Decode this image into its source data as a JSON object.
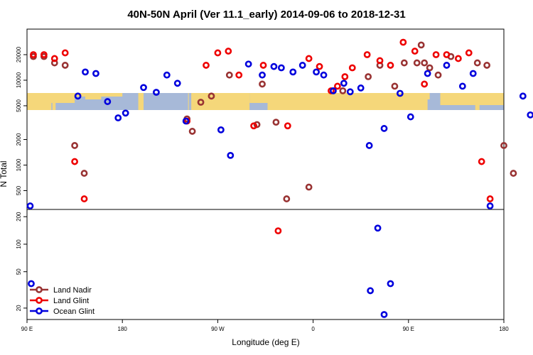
{
  "chart_data": {
    "type": "scatter",
    "title": "40N-50N April (Ver 11.1_early)   2014-09-06 to 2018-12-31",
    "xlabel": "Longitude (deg E)",
    "ylabel": "N Total",
    "x_ticks": [
      {
        "value": 90,
        "label": "90 E"
      },
      {
        "value": 180,
        "label": "180"
      },
      {
        "value": 270,
        "label": "90 W"
      },
      {
        "value": 360,
        "label": "0"
      },
      {
        "value": 450,
        "label": "90 E"
      },
      {
        "value": 540,
        "label": "180"
      }
    ],
    "xlim": [
      90,
      540
    ],
    "colors": {
      "land_nadir": "#993333",
      "land_glint": "#ee0000",
      "ocean_glint": "#0000dd",
      "land": "#f5d77a",
      "ocean": "#a7b9d8"
    },
    "panels": [
      {
        "name": "upper",
        "scale": "log",
        "ylim": [
          300,
          40000
        ],
        "y_ticks": [
          500,
          1000,
          2000,
          5000,
          10000,
          20000
        ],
        "series": [
          {
            "name": "Land Nadir",
            "color": "#993333",
            "points": [
              [
                96,
                19000
              ],
              [
                106,
                19000
              ],
              [
                116,
                16000
              ],
              [
                126,
                15000
              ],
              [
                135,
                1700
              ],
              [
                144,
                800
              ],
              [
                241,
                3500
              ],
              [
                246,
                2500
              ],
              [
                254,
                5500
              ],
              [
                264,
                6500
              ],
              [
                281,
                11500
              ],
              [
                307,
                3000
              ],
              [
                312,
                9000
              ],
              [
                325,
                3200
              ],
              [
                335,
                400
              ],
              [
                356,
                550
              ],
              [
                388,
                7500
              ],
              [
                412,
                11000
              ],
              [
                423,
                15000
              ],
              [
                437,
                8500
              ],
              [
                446,
                16000
              ],
              [
                458,
                16000
              ],
              [
                462,
                26000
              ],
              [
                465,
                16000
              ],
              [
                470,
                14000
              ],
              [
                478,
                11500
              ],
              [
                490,
                19000
              ],
              [
                515,
                16000
              ],
              [
                524,
                15000
              ],
              [
                540,
                1700
              ],
              [
                549,
                800
              ]
            ]
          },
          {
            "name": "Land Glint",
            "color": "#ee0000",
            "points": [
              [
                96,
                20000
              ],
              [
                106,
                20000
              ],
              [
                116,
                18000
              ],
              [
                126,
                21000
              ],
              [
                135,
                1100
              ],
              [
                144,
                400
              ],
              [
                241,
                3300
              ],
              [
                259,
                15000
              ],
              [
                270,
                21000
              ],
              [
                280,
                22000
              ],
              [
                290,
                11500
              ],
              [
                304,
                2900
              ],
              [
                313,
                15000
              ],
              [
                336,
                2900
              ],
              [
                356,
                18000
              ],
              [
                366,
                14500
              ],
              [
                377,
                7500
              ],
              [
                383,
                8500
              ],
              [
                390,
                11000
              ],
              [
                397,
                14000
              ],
              [
                411,
                20000
              ],
              [
                423,
                17000
              ],
              [
                433,
                15000
              ],
              [
                445,
                28000
              ],
              [
                456,
                22000
              ],
              [
                465,
                9000
              ],
              [
                476,
                20000
              ],
              [
                486,
                20000
              ],
              [
                497,
                18000
              ],
              [
                507,
                21000
              ],
              [
                519,
                1100
              ],
              [
                527,
                400
              ]
            ]
          },
          {
            "name": "Ocean Glint",
            "color": "#0000dd",
            "points": [
              [
                93,
                330
              ],
              [
                138,
                6500
              ],
              [
                145,
                12500
              ],
              [
                155,
                12000
              ],
              [
                166,
                5600
              ],
              [
                176,
                3600
              ],
              [
                183,
                4100
              ],
              [
                200,
                8200
              ],
              [
                212,
                7200
              ],
              [
                222,
                11500
              ],
              [
                232,
                9200
              ],
              [
                240,
                3300
              ],
              [
                273,
                2600
              ],
              [
                282,
                1300
              ],
              [
                299,
                15500
              ],
              [
                312,
                11500
              ],
              [
                323,
                14500
              ],
              [
                330,
                14000
              ],
              [
                341,
                12500
              ],
              [
                350,
                15000
              ],
              [
                363,
                12500
              ],
              [
                370,
                11500
              ],
              [
                379,
                7500
              ],
              [
                389,
                9200
              ],
              [
                395,
                7300
              ],
              [
                405,
                8100
              ],
              [
                413,
                1700
              ],
              [
                427,
                2700
              ],
              [
                442,
                7000
              ],
              [
                452,
                3700
              ],
              [
                468,
                12000
              ],
              [
                486,
                15000
              ],
              [
                501,
                8500
              ],
              [
                511,
                12000
              ],
              [
                527,
                330
              ],
              [
                558,
                6500
              ],
              [
                565,
                3900
              ]
            ]
          }
        ]
      },
      {
        "name": "lower",
        "scale": "log",
        "ylim": [
          15,
          240
        ],
        "y_ticks": [
          20,
          50,
          100,
          200
        ],
        "series": [
          {
            "name": "Land Nadir",
            "color": "#993333",
            "points": []
          },
          {
            "name": "Land Glint",
            "color": "#ee0000",
            "points": [
              [
                327,
                140
              ]
            ]
          },
          {
            "name": "Ocean Glint",
            "color": "#0000dd",
            "points": [
              [
                94,
                37
              ],
              [
                414,
                31
              ],
              [
                421,
                150
              ],
              [
                427,
                17
              ],
              [
                433,
                37
              ]
            ]
          }
        ]
      }
    ],
    "legend": {
      "position": "bottom-left",
      "entries": [
        {
          "label": "Land Nadir",
          "color": "#993333"
        },
        {
          "label": "Land Glint",
          "color": "#ee0000"
        },
        {
          "label": "Ocean Glint",
          "color": "#0000dd"
        }
      ]
    },
    "grid": false
  }
}
